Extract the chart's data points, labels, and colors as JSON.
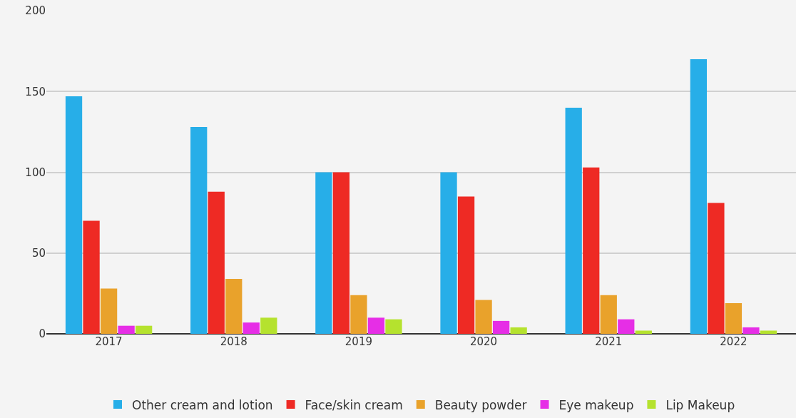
{
  "chart_data": {
    "type": "bar",
    "categories": [
      "2017",
      "2018",
      "2019",
      "2020",
      "2021",
      "2022"
    ],
    "series": [
      {
        "name": "Other cream and lotion",
        "color": "#27aee8",
        "values": [
          147,
          128,
          100,
          100,
          140,
          170
        ]
      },
      {
        "name": "Face/skin cream",
        "color": "#ee2a24",
        "values": [
          70,
          88,
          100,
          85,
          103,
          81
        ]
      },
      {
        "name": "Beauty powder",
        "color": "#e9a22b",
        "values": [
          28,
          34,
          24,
          21,
          24,
          19
        ]
      },
      {
        "name": "Eye makeup",
        "color": "#e62ee6",
        "values": [
          5,
          7,
          10,
          8,
          9,
          4
        ]
      },
      {
        "name": "Lip Makeup",
        "color": "#b5e22e",
        "values": [
          5,
          10,
          9,
          4,
          2,
          2
        ]
      }
    ],
    "ylim": [
      0,
      200
    ],
    "yticks": [
      0,
      50,
      100,
      150,
      200
    ],
    "grid": "y",
    "legend": "bottom"
  }
}
